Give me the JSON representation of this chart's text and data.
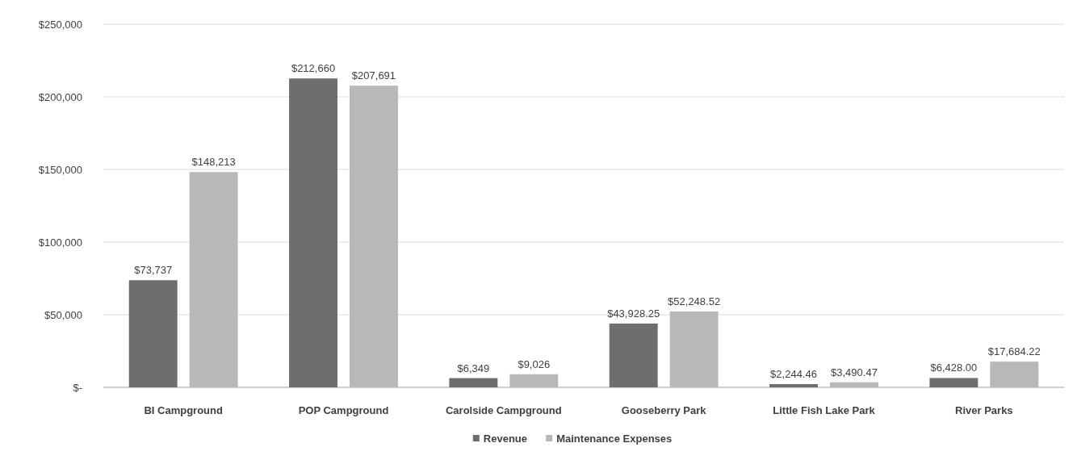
{
  "chart_data": {
    "type": "bar",
    "categories": [
      "BI Campground",
      "POP Campground",
      "Carolside Campground",
      "Gooseberry Park",
      "Little Fish Lake Park",
      "River Parks"
    ],
    "series": [
      {
        "name": "Revenue",
        "color": "#6e6e6e",
        "values": [
          73737,
          212660,
          6349,
          43928.25,
          2244.46,
          6428.0
        ],
        "value_labels": [
          "$73,737",
          "$212,660",
          "$6,349",
          "$43,928.25",
          "$2,244.46",
          "$6,428.00"
        ]
      },
      {
        "name": "Maintenance Expenses",
        "color": "#b8b8b8",
        "values": [
          148213,
          207691,
          9026,
          52248.52,
          3490.47,
          17684.22
        ],
        "value_labels": [
          "$148,213",
          "$207,691",
          "$9,026",
          "$52,248.52",
          "$3,490.47",
          "$17,684.22"
        ]
      }
    ],
    "ylim": [
      0,
      250000
    ],
    "yticks": [
      {
        "value": 0,
        "label": "$-"
      },
      {
        "value": 50000,
        "label": "$50,000"
      },
      {
        "value": 100000,
        "label": "$100,000"
      },
      {
        "value": 150000,
        "label": "$150,000"
      },
      {
        "value": 200000,
        "label": "$200,000"
      },
      {
        "value": 250000,
        "label": "$250,000"
      }
    ],
    "grid": "y",
    "legend": "bottom"
  }
}
